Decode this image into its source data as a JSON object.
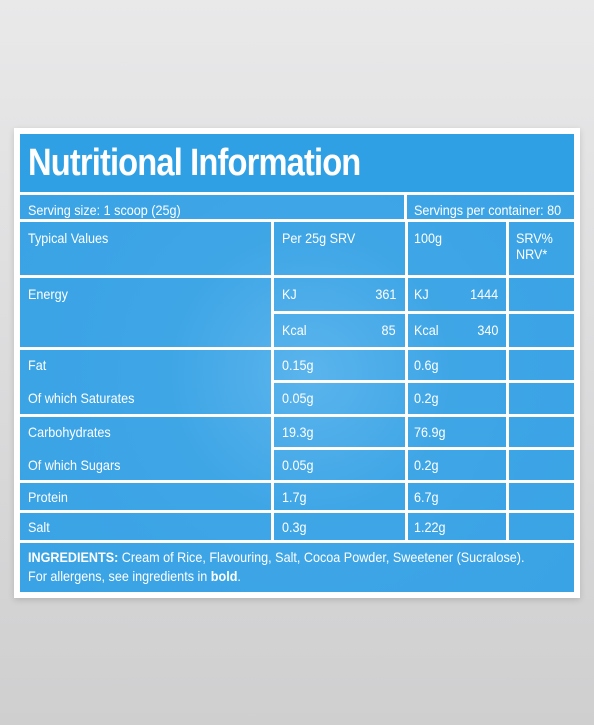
{
  "title": "Nutritional Information",
  "serving_size": "Serving size: 1 scoop (25g)",
  "servings_per_container": "Servings per container: 80",
  "headers": {
    "typical": "Typical Values",
    "per_serving": "Per 25g SRV",
    "per_100g": "100g",
    "srv_nrv": "SRV% NRV*"
  },
  "energy": {
    "label": "Energy",
    "kj_label": "KJ",
    "kj_per_serving": "361",
    "kj_per_100g": "1444",
    "kcal_label": "Kcal",
    "kcal_per_serving": "85",
    "kcal_per_100g": "340"
  },
  "rows": [
    {
      "label": "Fat",
      "per_serving": "0.15g",
      "per_100g": "0.6g"
    },
    {
      "label": "Of which Saturates",
      "per_serving": "0.05g",
      "per_100g": "0.2g"
    },
    {
      "label": "Carbohydrates",
      "per_serving": "19.3g",
      "per_100g": "76.9g"
    },
    {
      "label": "Of which Sugars",
      "per_serving": "0.05g",
      "per_100g": "0.2g"
    },
    {
      "label": "Protein",
      "per_serving": "1.7g",
      "per_100g": "6.7g"
    },
    {
      "label": "Salt",
      "per_serving": "0.3g",
      "per_100g": "1.22g"
    }
  ],
  "ingredients": {
    "heading": "INGREDIENTS:",
    "text": "Cream of Rice, Flavouring, Salt, Cocoa Powder, Sweetener (Sucralose).",
    "allergen_prefix": "For allergens, see ingredients in ",
    "allergen_bold": "bold",
    "allergen_suffix": "."
  },
  "colors": {
    "panel_blue": "#39a3e5",
    "title_blue": "#2fa0e4",
    "text": "#ffffff"
  }
}
